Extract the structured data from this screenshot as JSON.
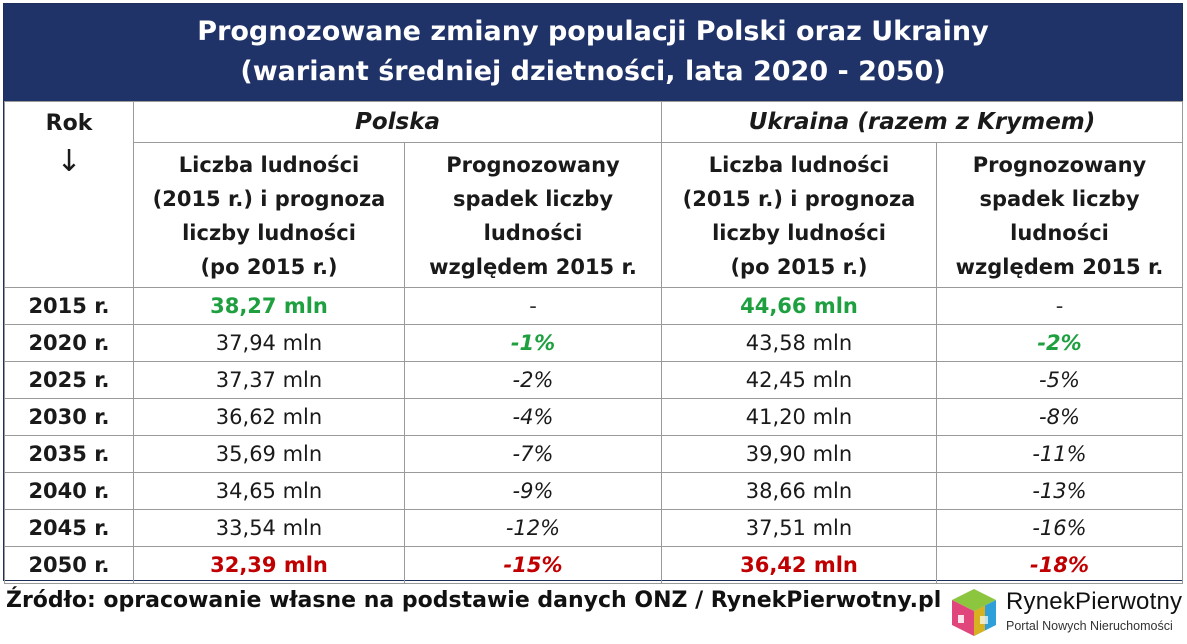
{
  "title": {
    "line1": "Prognozowane zmiany populacji Polski oraz Ukrainy",
    "line2": "(wariant średniej dzietności, lata 2020 - 2050)"
  },
  "header": {
    "rok": "Rok",
    "arrow": "↓",
    "countries": [
      "Polska",
      "Ukraina (razem z Krymem)"
    ],
    "sub_population": [
      "Liczba ludności",
      "(2015 r.) i prognoza",
      "liczby ludności",
      "(po 2015 r.)"
    ],
    "sub_decline": [
      "Prognozowany",
      "spadek liczby",
      "ludności",
      "względem 2015 r."
    ]
  },
  "rows": [
    {
      "year": "2015 r.",
      "pl_pop": "38,27 mln",
      "pl_change": "-",
      "ua_pop": "44,66 mln",
      "ua_change": "-"
    },
    {
      "year": "2020 r.",
      "pl_pop": "37,94 mln",
      "pl_change": "-1%",
      "ua_pop": "43,58 mln",
      "ua_change": "-2%"
    },
    {
      "year": "2025 r.",
      "pl_pop": "37,37 mln",
      "pl_change": "-2%",
      "ua_pop": "42,45 mln",
      "ua_change": "-5%"
    },
    {
      "year": "2030 r.",
      "pl_pop": "36,62 mln",
      "pl_change": "-4%",
      "ua_pop": "41,20 mln",
      "ua_change": "-8%"
    },
    {
      "year": "2035 r.",
      "pl_pop": "35,69 mln",
      "pl_change": "-7%",
      "ua_pop": "39,90 mln",
      "ua_change": "-11%"
    },
    {
      "year": "2040 r.",
      "pl_pop": "34,65 mln",
      "pl_change": "-9%",
      "ua_pop": "38,66 mln",
      "ua_change": "-13%"
    },
    {
      "year": "2045 r.",
      "pl_pop": "33,54 mln",
      "pl_change": "-12%",
      "ua_pop": "37,51 mln",
      "ua_change": "-16%"
    },
    {
      "year": "2050 r.",
      "pl_pop": "32,39 mln",
      "pl_change": "-15%",
      "ua_pop": "36,42 mln",
      "ua_change": "-18%"
    }
  ],
  "footer": {
    "source": "Źródło: opracowanie własne na podstawie danych ONZ / RynekPierwotny.pl"
  },
  "logo": {
    "name": "RynekPierwotny",
    "tagline": "Portal Nowych Nieruchomości"
  },
  "colors": {
    "title_bg": "#1f3369",
    "highlight_green": "#1fa040",
    "highlight_red": "#c00000"
  }
}
